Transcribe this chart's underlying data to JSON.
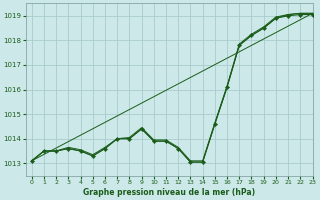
{
  "title": "Graphe pression niveau de la mer (hPa)",
  "background_color": "#cce8e8",
  "grid_color": "#aacccc",
  "line_color": "#1a5c1a",
  "xlim": [
    -0.5,
    23
  ],
  "ylim": [
    1012.5,
    1019.5
  ],
  "yticks": [
    1013,
    1014,
    1015,
    1016,
    1017,
    1018,
    1019
  ],
  "xticks": [
    0,
    1,
    2,
    3,
    4,
    5,
    6,
    7,
    8,
    9,
    10,
    11,
    12,
    13,
    14,
    15,
    16,
    17,
    18,
    19,
    20,
    21,
    22,
    23
  ],
  "x": [
    0,
    1,
    2,
    3,
    4,
    5,
    6,
    7,
    8,
    9,
    10,
    11,
    12,
    13,
    14,
    15,
    16,
    17,
    18,
    19,
    20,
    21,
    22,
    23
  ],
  "main_y": [
    1013.1,
    1013.5,
    1013.5,
    1013.6,
    1013.5,
    1013.3,
    1013.6,
    1014.0,
    1014.0,
    1014.4,
    1013.9,
    1013.9,
    1013.6,
    1013.05,
    1013.05,
    1014.6,
    1016.1,
    1017.8,
    1018.2,
    1018.5,
    1018.9,
    1019.0,
    1019.05,
    1019.05
  ],
  "line_a": [
    1013.1,
    1013.5,
    1013.5,
    1013.6,
    1013.5,
    1013.3,
    1013.6,
    1014.0,
    1014.0,
    1014.4,
    1013.9,
    1013.9,
    1013.6,
    1013.05,
    1013.05,
    1014.6,
    1016.1,
    1017.8,
    1018.2,
    1018.5,
    1018.9,
    1019.05,
    1019.1,
    1019.1
  ],
  "line_b": [
    1013.1,
    1013.5,
    1013.5,
    1013.65,
    1013.55,
    1013.35,
    1013.65,
    1014.0,
    1014.05,
    1014.45,
    1013.95,
    1013.95,
    1013.65,
    1013.1,
    1013.1,
    1014.65,
    1016.15,
    1017.85,
    1018.25,
    1018.55,
    1018.95,
    1019.05,
    1019.1,
    1019.1
  ],
  "trend_x": [
    0,
    23
  ],
  "trend_y": [
    1013.1,
    1019.1
  ],
  "xtick_labels": [
    "0",
    "1",
    "2",
    "3",
    "4",
    "5",
    "6",
    "7",
    "8",
    "9",
    "10",
    "11",
    "12",
    "13",
    "14",
    "15",
    "16",
    "17",
    "18",
    "19",
    "20",
    "21",
    "22",
    "23"
  ]
}
